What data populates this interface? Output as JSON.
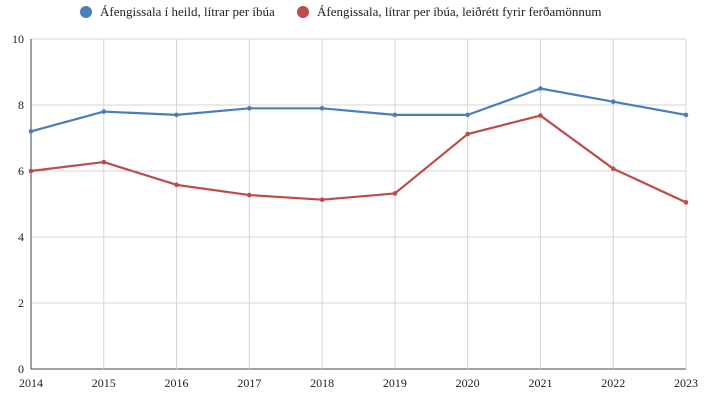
{
  "chart_data": {
    "type": "line",
    "categories": [
      "2014",
      "2015",
      "2016",
      "2017",
      "2018",
      "2019",
      "2020",
      "2021",
      "2022",
      "2023"
    ],
    "series": [
      {
        "name": "Áfengissala í heild, lítrar per íbúa",
        "color": "#4a7ebb",
        "values": [
          7.2,
          7.8,
          7.7,
          7.9,
          7.9,
          7.7,
          7.7,
          8.5,
          8.1,
          7.7
        ]
      },
      {
        "name": "Áfengissala, lítrar per íbúa, leiðrétt fyrir ferðamönnum",
        "color": "#be4b48",
        "values": [
          6.0,
          6.27,
          5.58,
          5.27,
          5.13,
          5.32,
          7.12,
          7.68,
          6.07,
          5.05
        ]
      }
    ],
    "ylim": [
      0,
      10
    ],
    "yticks": [
      "0",
      "2",
      "4",
      "6",
      "8",
      "10"
    ],
    "grid": true,
    "legend_position": "top"
  }
}
